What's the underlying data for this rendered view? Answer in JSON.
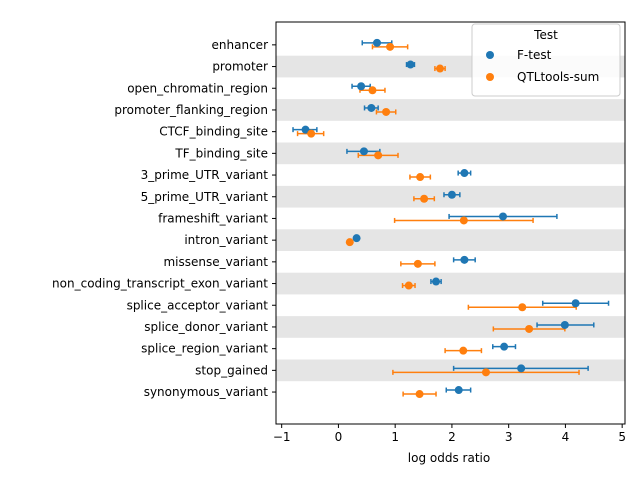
{
  "chart_data": {
    "type": "scatter",
    "subtype": "forest-plot-with-error-bars",
    "xlabel": "log odds ratio",
    "ylabel": "",
    "xlim": [
      -1.1,
      5.05
    ],
    "xticks": [
      -1,
      0,
      1,
      2,
      3,
      4,
      5
    ],
    "grid": false,
    "shaded_alternate_rows": true,
    "shade_color": "#e5e5e5",
    "categories": [
      "enhancer",
      "promoter",
      "open_chromatin_region",
      "promoter_flanking_region",
      "CTCF_binding_site",
      "TF_binding_site",
      "3_prime_UTR_variant",
      "5_prime_UTR_variant",
      "frameshift_variant",
      "intron_variant",
      "missense_variant",
      "non_coding_transcript_exon_variant",
      "splice_acceptor_variant",
      "splice_donor_variant",
      "splice_region_variant",
      "stop_gained",
      "synonymous_variant"
    ],
    "legend": {
      "title": "Test",
      "position": "top-right"
    },
    "series": [
      {
        "name": "F-test",
        "color": "#1f77b4",
        "values": [
          0.68,
          1.27,
          0.4,
          0.58,
          -0.58,
          0.45,
          2.22,
          2.0,
          2.9,
          0.32,
          2.22,
          1.72,
          4.18,
          3.99,
          2.92,
          3.22,
          2.12
        ],
        "lower": [
          0.42,
          1.2,
          0.24,
          0.46,
          -0.8,
          0.15,
          2.11,
          1.86,
          1.95,
          0.29,
          2.03,
          1.63,
          3.6,
          3.5,
          2.72,
          2.03,
          1.9
        ],
        "upper": [
          0.94,
          1.34,
          0.56,
          0.7,
          -0.38,
          0.73,
          2.33,
          2.14,
          3.85,
          0.35,
          2.41,
          1.81,
          4.76,
          4.5,
          3.12,
          4.4,
          2.33
        ]
      },
      {
        "name": "QTLtools-sum",
        "color": "#ff7f0e",
        "values": [
          0.91,
          1.79,
          0.6,
          0.84,
          -0.48,
          0.7,
          1.44,
          1.51,
          2.21,
          0.2,
          1.4,
          1.24,
          3.24,
          3.36,
          2.2,
          2.6,
          1.43
        ],
        "lower": [
          0.6,
          1.7,
          0.38,
          0.67,
          -0.72,
          0.35,
          1.26,
          1.33,
          0.99,
          0.17,
          1.1,
          1.13,
          2.29,
          2.73,
          1.88,
          0.96,
          1.14
        ],
        "upper": [
          1.22,
          1.88,
          0.82,
          1.01,
          -0.26,
          1.05,
          1.62,
          1.69,
          3.43,
          0.23,
          1.7,
          1.35,
          4.19,
          3.99,
          2.52,
          4.24,
          1.72
        ]
      }
    ]
  }
}
